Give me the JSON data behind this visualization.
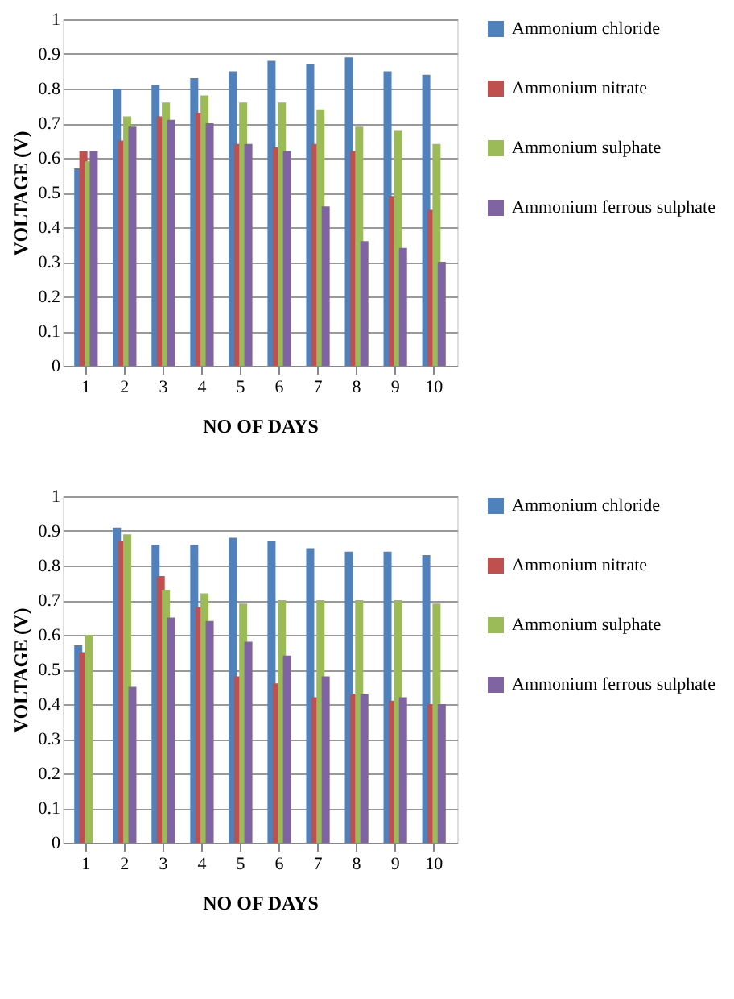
{
  "chart_data": [
    {
      "type": "bar",
      "xlabel": "NO OF DAYS",
      "ylabel": "VOLTAGE (V)",
      "categories": [
        "1",
        "2",
        "3",
        "4",
        "5",
        "6",
        "7",
        "8",
        "9",
        "10"
      ],
      "ylim": [
        0,
        1
      ],
      "yticks": [
        0,
        0.1,
        0.2,
        0.3,
        0.4,
        0.5,
        0.6,
        0.7,
        0.8,
        0.9,
        1
      ],
      "grid": "y",
      "legend": "right",
      "series": [
        {
          "name": "Ammonium chloride",
          "color": "#4f81bd",
          "values": [
            0.57,
            0.8,
            0.81,
            0.83,
            0.85,
            0.88,
            0.87,
            0.89,
            0.85,
            0.84
          ]
        },
        {
          "name": "Ammonium nitrate",
          "color": "#c0504d",
          "values": [
            0.62,
            0.65,
            0.72,
            0.73,
            0.64,
            0.63,
            0.64,
            0.62,
            0.49,
            0.45
          ]
        },
        {
          "name": "Ammonium sulphate",
          "color": "#9bbb59",
          "values": [
            0.59,
            0.72,
            0.76,
            0.78,
            0.76,
            0.76,
            0.74,
            0.69,
            0.68,
            0.64
          ]
        },
        {
          "name": "Ammonium ferrous sulphate",
          "color": "#8064a2",
          "values": [
            0.62,
            0.69,
            0.71,
            0.7,
            0.64,
            0.62,
            0.46,
            0.36,
            0.34,
            0.3
          ]
        }
      ]
    },
    {
      "type": "bar",
      "xlabel": "NO OF DAYS",
      "ylabel": "VOLTAGE (V)",
      "categories": [
        "1",
        "2",
        "3",
        "4",
        "5",
        "6",
        "7",
        "8",
        "9",
        "10"
      ],
      "ylim": [
        0,
        1
      ],
      "yticks": [
        0,
        0.1,
        0.2,
        0.3,
        0.4,
        0.5,
        0.6,
        0.7,
        0.8,
        0.9,
        1
      ],
      "grid": "y",
      "legend": "right",
      "series": [
        {
          "name": "Ammonium chloride",
          "color": "#4f81bd",
          "values": [
            0.57,
            0.91,
            0.86,
            0.86,
            0.88,
            0.87,
            0.85,
            0.84,
            0.84,
            0.83
          ]
        },
        {
          "name": "Ammonium nitrate",
          "color": "#c0504d",
          "values": [
            0.55,
            0.87,
            0.77,
            0.68,
            0.48,
            0.46,
            0.42,
            0.43,
            0.41,
            0.4
          ]
        },
        {
          "name": "Ammonium sulphate",
          "color": "#9bbb59",
          "values": [
            0.6,
            0.89,
            0.73,
            0.72,
            0.69,
            0.7,
            0.7,
            0.7,
            0.7,
            0.69
          ]
        },
        {
          "name": "Ammonium ferrous sulphate",
          "color": "#8064a2",
          "values": [
            null,
            0.45,
            0.65,
            0.64,
            0.58,
            0.54,
            0.48,
            0.43,
            0.42,
            0.4
          ]
        }
      ]
    }
  ]
}
